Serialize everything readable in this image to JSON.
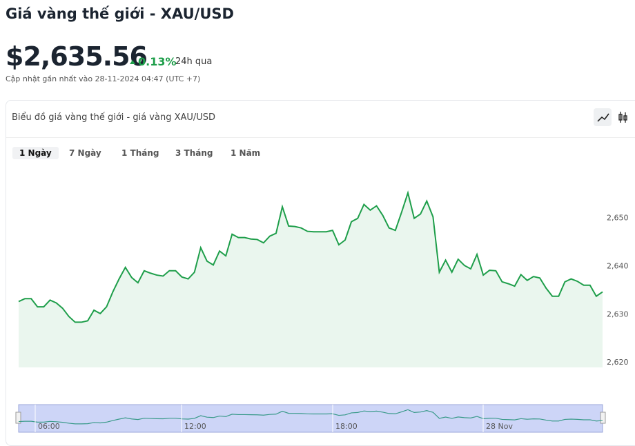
{
  "header": {
    "title": "Giá vàng thế giới - XAU/USD",
    "price": "$2,635.56",
    "change": "0.13%",
    "change_period": "24h qua",
    "updated": "Cập nhật gần nhất vào 28-11-2024 04:47 (UTC +7)"
  },
  "card": {
    "title": "Biểu đồ giá vàng thế giới - giá vàng XAU/USD",
    "tabs": [
      "1 Ngày",
      "7 Ngày",
      "1 Tháng",
      "3 Tháng",
      "1 Năm"
    ],
    "active_tab": "1 Ngày"
  },
  "navigator": {
    "labels": [
      "06:00",
      "12:00",
      "18:00",
      "28 Nov"
    ]
  },
  "chart_data": {
    "type": "line",
    "color": "#1e9e4a",
    "values": [
      2632.7,
      2633.3,
      2633.3,
      2631.6,
      2631.6,
      2633.0,
      2632.4,
      2631.3,
      2629.6,
      2628.4,
      2628.4,
      2628.7,
      2630.9,
      2630.2,
      2631.6,
      2634.7,
      2637.4,
      2639.8,
      2637.7,
      2636.6,
      2639.1,
      2638.6,
      2638.2,
      2638.0,
      2639.1,
      2639.1,
      2637.8,
      2637.4,
      2638.8,
      2643.9,
      2641.1,
      2640.3,
      2643.2,
      2642.2,
      2646.7,
      2646.0,
      2646.0,
      2645.7,
      2645.6,
      2644.9,
      2646.3,
      2646.9,
      2652.4,
      2648.4,
      2648.3,
      2648.0,
      2647.3,
      2647.2,
      2647.2,
      2647.2,
      2647.5,
      2644.5,
      2645.5,
      2649.3,
      2650.0,
      2652.9,
      2651.7,
      2652.6,
      2650.6,
      2648.0,
      2647.5,
      2651.3,
      2655.3,
      2650.0,
      2650.9,
      2653.6,
      2650.3,
      2638.8,
      2641.3,
      2638.8,
      2641.5,
      2640.2,
      2639.5,
      2642.5,
      2638.2,
      2639.2,
      2639.1,
      2636.8,
      2636.4,
      2635.9,
      2638.3,
      2637.1,
      2637.9,
      2637.6,
      2635.5,
      2633.8,
      2633.8,
      2636.8,
      2637.4,
      2636.9,
      2636.1,
      2636.1,
      2633.8,
      2634.7
    ],
    "ylim": [
      2619,
      2661
    ],
    "yticks": [
      {
        "value": 2620,
        "label": "2,620"
      },
      {
        "value": 2630,
        "label": "2,630"
      },
      {
        "value": 2640,
        "label": "2,640"
      },
      {
        "value": 2650,
        "label": "2,650"
      }
    ]
  }
}
